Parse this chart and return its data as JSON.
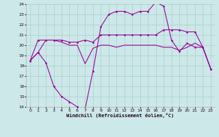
{
  "xlabel": "Windchill (Refroidissement éolien,°C)",
  "x": [
    0,
    1,
    2,
    3,
    4,
    5,
    6,
    7,
    8,
    9,
    10,
    11,
    12,
    13,
    14,
    15,
    16,
    17,
    18,
    19,
    20,
    21,
    22,
    23
  ],
  "line_windchill": [
    18.5,
    19.3,
    18.3,
    16.0,
    15.0,
    14.5,
    14.0,
    13.8,
    17.5,
    21.8,
    23.0,
    23.3,
    23.3,
    23.0,
    23.3,
    23.3,
    24.2,
    23.8,
    20.5,
    19.4,
    20.2,
    19.8,
    19.8,
    17.7
  ],
  "line_mid": [
    18.5,
    19.3,
    20.5,
    20.5,
    20.3,
    20.0,
    20.0,
    18.2,
    19.7,
    20.0,
    20.0,
    19.8,
    20.0,
    20.0,
    20.0,
    20.0,
    20.0,
    19.8,
    19.8,
    19.5,
    19.8,
    20.2,
    19.8,
    17.7
  ],
  "line_top": [
    18.5,
    20.5,
    20.5,
    20.5,
    20.5,
    20.3,
    20.3,
    20.5,
    20.3,
    21.0,
    21.0,
    21.0,
    21.0,
    21.0,
    21.0,
    21.0,
    21.0,
    21.5,
    21.5,
    21.5,
    21.3,
    21.3,
    19.8,
    17.7
  ],
  "bg_color": "#cce8e8",
  "line_color": "#990099",
  "grid_color": "#aacccc",
  "ylim": [
    14,
    24
  ],
  "yticks": [
    14,
    15,
    16,
    17,
    18,
    19,
    20,
    21,
    22,
    23,
    24
  ],
  "xticks": [
    0,
    1,
    2,
    3,
    4,
    5,
    6,
    7,
    8,
    9,
    10,
    11,
    12,
    13,
    14,
    15,
    16,
    17,
    18,
    19,
    20,
    21,
    22,
    23
  ]
}
